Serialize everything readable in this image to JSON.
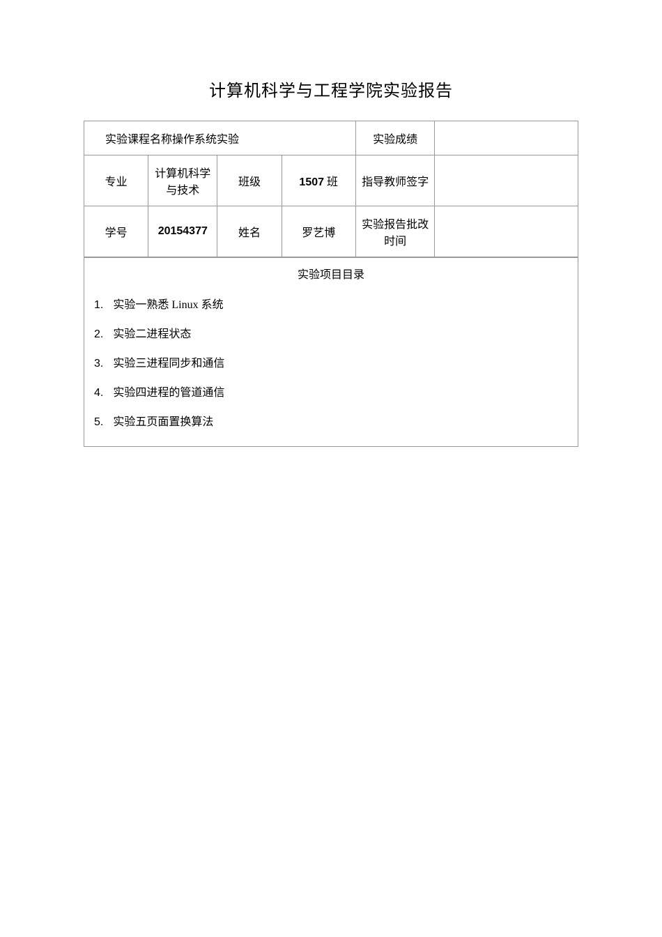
{
  "title": "计算机科学与工程学院实验报告",
  "course": {
    "label": "实验课程名称操作系统实验",
    "grade_label": "实验成绩",
    "grade_value": ""
  },
  "row2": {
    "major_label": "专业",
    "major_value": "计算机科学与技术",
    "class_label": "班级",
    "class_value": "1507 班",
    "teacher_label": "指导教师签字",
    "teacher_value": ""
  },
  "row3": {
    "student_id_label": "学号",
    "student_id_value": "20154377",
    "name_label": "姓名",
    "name_value": "罗艺博",
    "review_time_label": "实验报告批改时间",
    "review_time_value": ""
  },
  "toc": {
    "header": "实验项目目录",
    "items": [
      {
        "num": "1.",
        "text": "实验一熟悉 Linux 系统"
      },
      {
        "num": "2.",
        "text": "实验二进程状态"
      },
      {
        "num": "3.",
        "text": "实验三进程同步和通信"
      },
      {
        "num": "4.",
        "text": "实验四进程的管道通信"
      },
      {
        "num": "5.",
        "text": "实验五页面置换算法"
      }
    ]
  }
}
